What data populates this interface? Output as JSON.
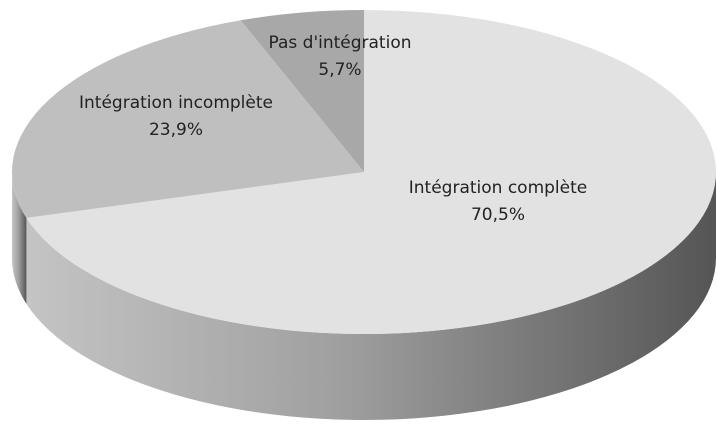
{
  "chart_data": {
    "type": "pie",
    "categories": [
      "Intégration complète",
      "Intégration incomplète",
      "Pas d'intégration"
    ],
    "values": [
      70.5,
      23.9,
      5.7
    ],
    "value_labels": [
      "70,5%",
      "23,9%",
      "5,7%"
    ],
    "colors": [
      "#e2e2e2",
      "#bfbfbf",
      "#a8a8a8"
    ]
  }
}
